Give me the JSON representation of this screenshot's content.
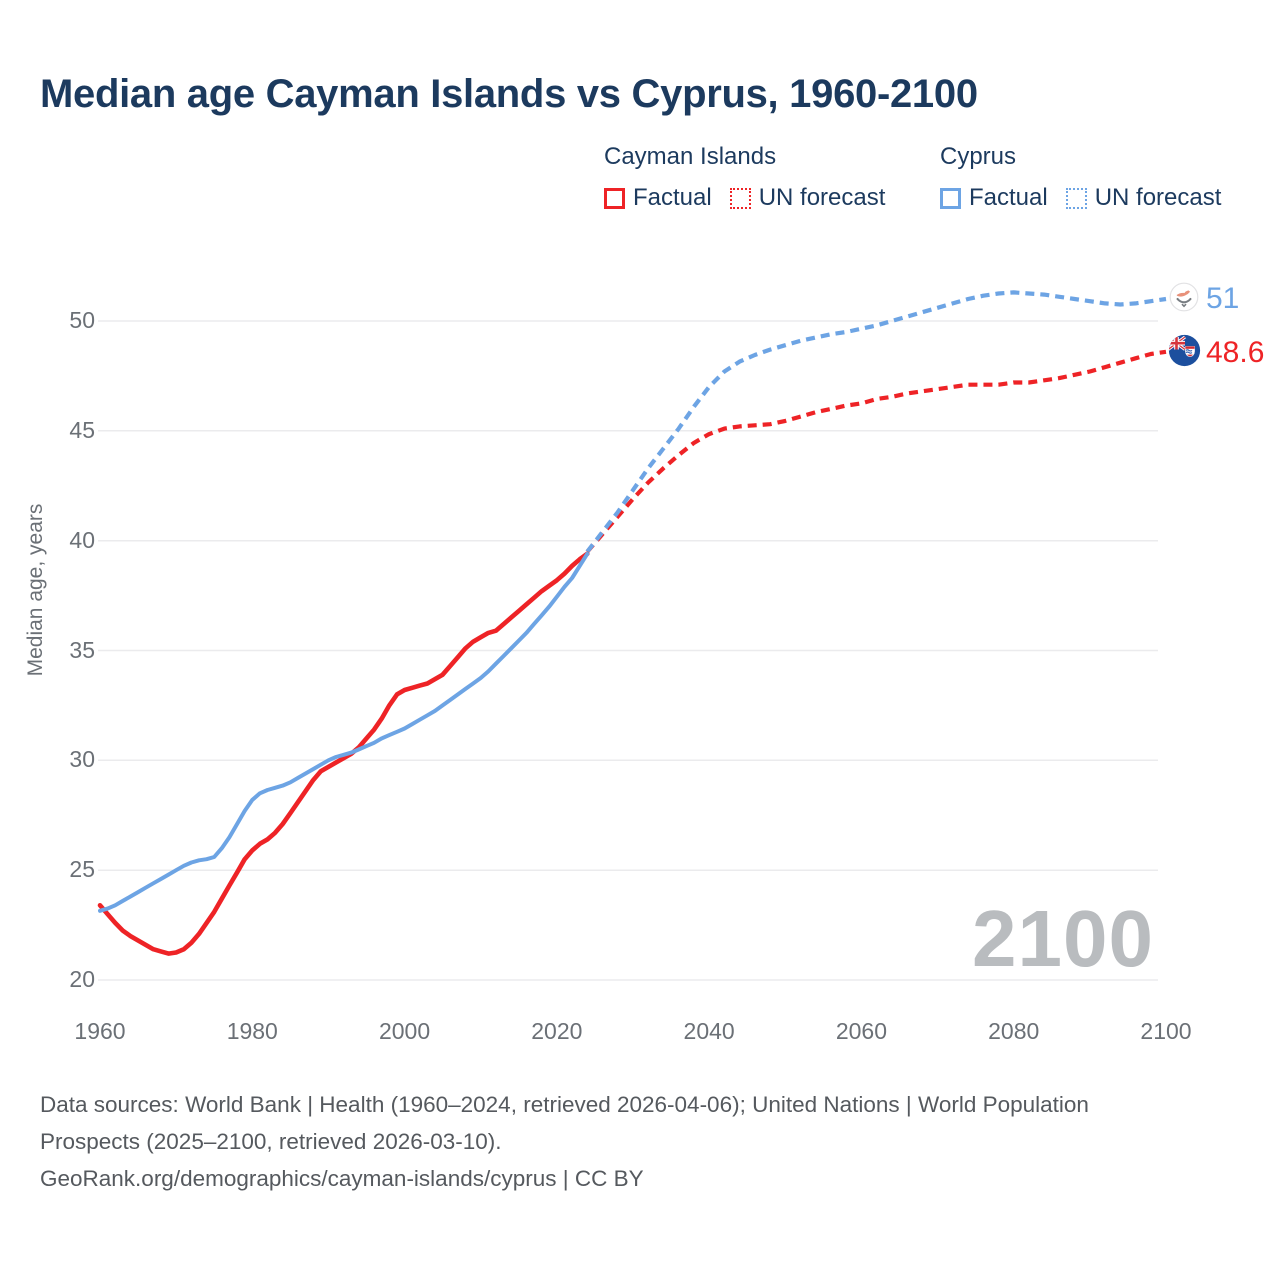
{
  "title": "Median age Cayman Islands vs Cyprus, 1960-2100",
  "colors": {
    "cayman_red": "#ee2326",
    "cyprus_blue": "#6da4e4",
    "title_text": "#1c3a5e",
    "axis_text": "#6b7076",
    "grid_line": "#ebebed",
    "watermark_text": "#b9bcbf",
    "footer_text": "#55595e"
  },
  "legend": {
    "groups": [
      {
        "name": "Cayman Islands",
        "items": [
          {
            "label": "Factual",
            "style": "solid"
          },
          {
            "label": "UN forecast",
            "style": "dotted"
          }
        ]
      },
      {
        "name": "Cyprus",
        "items": [
          {
            "label": "Factual",
            "style": "solid"
          },
          {
            "label": "UN forecast",
            "style": "dotted"
          }
        ]
      }
    ]
  },
  "y_axis": {
    "label": "Median age, years",
    "ticks": [
      20,
      25,
      30,
      35,
      40,
      45,
      50
    ]
  },
  "x_axis": {
    "ticks": [
      1960,
      1980,
      2000,
      2020,
      2040,
      2060,
      2080,
      2100
    ]
  },
  "watermark": "2100",
  "end_labels": {
    "cyprus": {
      "value": "51",
      "flag": "cyprus-flag-icon"
    },
    "cayman": {
      "value": "48.6",
      "flag": "cayman-islands-flag-icon"
    }
  },
  "footer": {
    "sources": "Data sources: World Bank | Health (1960–2024, retrieved 2026-04-06); United Nations | World Population Prospects (2025–2100, retrieved 2026-03-10).",
    "link": "GeoRank.org/demographics/cayman-islands/cyprus | CC BY"
  },
  "chart_data": {
    "type": "line",
    "title": "Median age Cayman Islands vs Cyprus, 1960-2100",
    "xlabel": "",
    "ylabel": "Median age, years",
    "xlim": [
      1960,
      2100
    ],
    "ylim": [
      20,
      52
    ],
    "grid": "horizontal",
    "legend_position": "top-right",
    "series": [
      {
        "name": "Cayman Islands — Factual",
        "color": "#ee2326",
        "style": "solid",
        "points": [
          [
            1960,
            23.4
          ],
          [
            1961,
            23.0
          ],
          [
            1962,
            22.6
          ],
          [
            1963,
            22.25
          ],
          [
            1964,
            22.0
          ],
          [
            1965,
            21.8
          ],
          [
            1966,
            21.6
          ],
          [
            1967,
            21.4
          ],
          [
            1968,
            21.3
          ],
          [
            1969,
            21.2
          ],
          [
            1970,
            21.25
          ],
          [
            1971,
            21.4
          ],
          [
            1972,
            21.7
          ],
          [
            1973,
            22.1
          ],
          [
            1974,
            22.6
          ],
          [
            1975,
            23.1
          ],
          [
            1976,
            23.7
          ],
          [
            1977,
            24.3
          ],
          [
            1978,
            24.9
          ],
          [
            1979,
            25.5
          ],
          [
            1980,
            25.9
          ],
          [
            1981,
            26.2
          ],
          [
            1982,
            26.4
          ],
          [
            1983,
            26.7
          ],
          [
            1984,
            27.1
          ],
          [
            1985,
            27.6
          ],
          [
            1986,
            28.1
          ],
          [
            1987,
            28.6
          ],
          [
            1988,
            29.1
          ],
          [
            1989,
            29.5
          ],
          [
            1990,
            29.7
          ],
          [
            1991,
            29.9
          ],
          [
            1992,
            30.1
          ],
          [
            1993,
            30.3
          ],
          [
            1994,
            30.6
          ],
          [
            1995,
            31.0
          ],
          [
            1996,
            31.4
          ],
          [
            1997,
            31.9
          ],
          [
            1998,
            32.5
          ],
          [
            1999,
            33.0
          ],
          [
            2000,
            33.2
          ],
          [
            2001,
            33.3
          ],
          [
            2002,
            33.4
          ],
          [
            2003,
            33.5
          ],
          [
            2004,
            33.7
          ],
          [
            2005,
            33.9
          ],
          [
            2006,
            34.3
          ],
          [
            2007,
            34.7
          ],
          [
            2008,
            35.1
          ],
          [
            2009,
            35.4
          ],
          [
            2010,
            35.6
          ],
          [
            2011,
            35.8
          ],
          [
            2012,
            35.9
          ],
          [
            2013,
            36.2
          ],
          [
            2014,
            36.5
          ],
          [
            2015,
            36.8
          ],
          [
            2016,
            37.1
          ],
          [
            2017,
            37.4
          ],
          [
            2018,
            37.7
          ],
          [
            2019,
            37.95
          ],
          [
            2020,
            38.2
          ],
          [
            2021,
            38.5
          ],
          [
            2022,
            38.85
          ],
          [
            2023,
            39.15
          ],
          [
            2024,
            39.4
          ]
        ]
      },
      {
        "name": "Cayman Islands — UN forecast",
        "color": "#ee2326",
        "style": "dashed",
        "points": [
          [
            2024,
            39.5
          ],
          [
            2026,
            40.3
          ],
          [
            2028,
            41.1
          ],
          [
            2030,
            41.9
          ],
          [
            2032,
            42.65
          ],
          [
            2034,
            43.3
          ],
          [
            2036,
            43.9
          ],
          [
            2038,
            44.45
          ],
          [
            2040,
            44.85
          ],
          [
            2042,
            45.1
          ],
          [
            2044,
            45.2
          ],
          [
            2046,
            45.25
          ],
          [
            2048,
            45.3
          ],
          [
            2050,
            45.45
          ],
          [
            2052,
            45.65
          ],
          [
            2054,
            45.85
          ],
          [
            2056,
            46.0
          ],
          [
            2058,
            46.15
          ],
          [
            2060,
            46.25
          ],
          [
            2062,
            46.45
          ],
          [
            2064,
            46.55
          ],
          [
            2066,
            46.7
          ],
          [
            2068,
            46.8
          ],
          [
            2070,
            46.9
          ],
          [
            2072,
            47.0
          ],
          [
            2074,
            47.1
          ],
          [
            2076,
            47.1
          ],
          [
            2078,
            47.1
          ],
          [
            2080,
            47.2
          ],
          [
            2082,
            47.2
          ],
          [
            2084,
            47.3
          ],
          [
            2086,
            47.4
          ],
          [
            2088,
            47.55
          ],
          [
            2090,
            47.7
          ],
          [
            2092,
            47.9
          ],
          [
            2094,
            48.1
          ],
          [
            2096,
            48.3
          ],
          [
            2098,
            48.5
          ],
          [
            2100,
            48.6
          ]
        ]
      },
      {
        "name": "Cyprus — Factual",
        "color": "#6da4e4",
        "style": "solid",
        "points": [
          [
            1960,
            23.15
          ],
          [
            1961,
            23.25
          ],
          [
            1962,
            23.4
          ],
          [
            1963,
            23.6
          ],
          [
            1964,
            23.8
          ],
          [
            1965,
            24.0
          ],
          [
            1966,
            24.2
          ],
          [
            1967,
            24.4
          ],
          [
            1968,
            24.6
          ],
          [
            1969,
            24.8
          ],
          [
            1970,
            25.0
          ],
          [
            1971,
            25.2
          ],
          [
            1972,
            25.35
          ],
          [
            1973,
            25.45
          ],
          [
            1974,
            25.5
          ],
          [
            1975,
            25.6
          ],
          [
            1976,
            26.0
          ],
          [
            1977,
            26.5
          ],
          [
            1978,
            27.1
          ],
          [
            1979,
            27.7
          ],
          [
            1980,
            28.2
          ],
          [
            1981,
            28.5
          ],
          [
            1982,
            28.65
          ],
          [
            1983,
            28.75
          ],
          [
            1984,
            28.85
          ],
          [
            1985,
            29.0
          ],
          [
            1986,
            29.2
          ],
          [
            1987,
            29.4
          ],
          [
            1988,
            29.6
          ],
          [
            1989,
            29.8
          ],
          [
            1990,
            30.0
          ],
          [
            1991,
            30.15
          ],
          [
            1992,
            30.25
          ],
          [
            1993,
            30.35
          ],
          [
            1994,
            30.5
          ],
          [
            1995,
            30.65
          ],
          [
            1996,
            30.8
          ],
          [
            1997,
            31.0
          ],
          [
            1998,
            31.15
          ],
          [
            1999,
            31.3
          ],
          [
            2000,
            31.45
          ],
          [
            2001,
            31.65
          ],
          [
            2002,
            31.85
          ],
          [
            2003,
            32.05
          ],
          [
            2004,
            32.25
          ],
          [
            2005,
            32.5
          ],
          [
            2006,
            32.75
          ],
          [
            2007,
            33.0
          ],
          [
            2008,
            33.25
          ],
          [
            2009,
            33.5
          ],
          [
            2010,
            33.75
          ],
          [
            2011,
            34.05
          ],
          [
            2012,
            34.4
          ],
          [
            2013,
            34.75
          ],
          [
            2014,
            35.1
          ],
          [
            2015,
            35.45
          ],
          [
            2016,
            35.8
          ],
          [
            2017,
            36.2
          ],
          [
            2018,
            36.6
          ],
          [
            2019,
            37.0
          ],
          [
            2020,
            37.45
          ],
          [
            2021,
            37.9
          ],
          [
            2022,
            38.3
          ],
          [
            2023,
            38.85
          ],
          [
            2024,
            39.4
          ]
        ]
      },
      {
        "name": "Cyprus — UN forecast",
        "color": "#6da4e4",
        "style": "dashed",
        "points": [
          [
            2024,
            39.5
          ],
          [
            2026,
            40.4
          ],
          [
            2028,
            41.3
          ],
          [
            2030,
            42.3
          ],
          [
            2032,
            43.3
          ],
          [
            2034,
            44.2
          ],
          [
            2036,
            45.1
          ],
          [
            2038,
            46.1
          ],
          [
            2040,
            47.0
          ],
          [
            2042,
            47.7
          ],
          [
            2044,
            48.15
          ],
          [
            2046,
            48.45
          ],
          [
            2048,
            48.7
          ],
          [
            2050,
            48.9
          ],
          [
            2052,
            49.1
          ],
          [
            2054,
            49.25
          ],
          [
            2056,
            49.4
          ],
          [
            2058,
            49.5
          ],
          [
            2060,
            49.65
          ],
          [
            2062,
            49.8
          ],
          [
            2064,
            50.0
          ],
          [
            2066,
            50.2
          ],
          [
            2068,
            50.4
          ],
          [
            2070,
            50.6
          ],
          [
            2072,
            50.8
          ],
          [
            2074,
            51.0
          ],
          [
            2076,
            51.15
          ],
          [
            2078,
            51.25
          ],
          [
            2080,
            51.3
          ],
          [
            2082,
            51.25
          ],
          [
            2084,
            51.2
          ],
          [
            2086,
            51.1
          ],
          [
            2088,
            51.0
          ],
          [
            2090,
            50.9
          ],
          [
            2092,
            50.8
          ],
          [
            2094,
            50.75
          ],
          [
            2096,
            50.8
          ],
          [
            2098,
            50.9
          ],
          [
            2100,
            51.0
          ]
        ]
      }
    ]
  }
}
